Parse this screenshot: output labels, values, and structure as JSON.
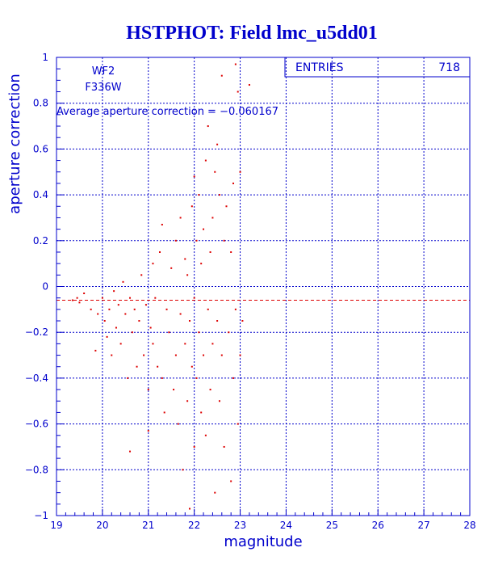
{
  "colors": {
    "text": "#0000cc",
    "grid": "#0000cc",
    "axis": "#0000cc",
    "points": "#dd0000",
    "mean_line": "#dd0000",
    "background": "#ffffff"
  },
  "chart_data": {
    "type": "scatter",
    "title": "HSTPHOT: Field lmc_u5dd01",
    "xlabel": "magnitude",
    "ylabel": "aperture correction",
    "xlim": [
      19,
      28
    ],
    "ylim": [
      -1,
      1
    ],
    "x_ticks": [
      "19",
      "20",
      "21",
      "22",
      "23",
      "24",
      "25",
      "26",
      "27",
      "28"
    ],
    "y_ticks": [
      "−1",
      "−0.8",
      "−0.6",
      "−0.4",
      "−0.2",
      "0",
      "0.2",
      "0.4",
      "0.6",
      "0.8",
      "1"
    ],
    "grid": true,
    "annotations": {
      "chip": "WF2",
      "filter": "F336W",
      "average_text": "Average aperture correction = −0.060167"
    },
    "average_line_y": -0.060167,
    "stats_box": {
      "label": "ENTRIES",
      "value": "718"
    },
    "series": [
      {
        "points": [
          [
            19.35,
            -0.06
          ],
          [
            19.45,
            -0.05
          ],
          [
            19.5,
            -0.07
          ],
          [
            19.6,
            -0.03
          ],
          [
            19.75,
            -0.1
          ],
          [
            19.85,
            -0.28
          ],
          [
            19.9,
            -0.12
          ],
          [
            20.0,
            -0.05
          ],
          [
            20.05,
            -0.15
          ],
          [
            20.1,
            -0.22
          ],
          [
            20.15,
            -0.1
          ],
          [
            20.2,
            -0.3
          ],
          [
            20.25,
            -0.02
          ],
          [
            20.3,
            -0.18
          ],
          [
            20.35,
            -0.08
          ],
          [
            20.4,
            -0.25
          ],
          [
            20.45,
            0.02
          ],
          [
            20.5,
            -0.12
          ],
          [
            20.55,
            -0.4
          ],
          [
            20.6,
            -0.05
          ],
          [
            20.6,
            -0.72
          ],
          [
            20.65,
            -0.2
          ],
          [
            20.7,
            -0.1
          ],
          [
            20.75,
            -0.35
          ],
          [
            20.8,
            -0.15
          ],
          [
            20.85,
            0.05
          ],
          [
            20.9,
            -0.3
          ],
          [
            20.95,
            -0.08
          ],
          [
            21.0,
            -0.45
          ],
          [
            21.0,
            -0.63
          ],
          [
            21.05,
            -0.18
          ],
          [
            21.1,
            -0.25
          ],
          [
            21.1,
            0.1
          ],
          [
            21.15,
            -0.05
          ],
          [
            21.2,
            -0.35
          ],
          [
            21.25,
            0.15
          ],
          [
            21.3,
            -0.4
          ],
          [
            21.3,
            0.27
          ],
          [
            21.35,
            -0.55
          ],
          [
            21.4,
            -0.1
          ],
          [
            21.45,
            -0.2
          ],
          [
            21.5,
            0.08
          ],
          [
            21.55,
            -0.45
          ],
          [
            21.6,
            0.2
          ],
          [
            21.6,
            -0.3
          ],
          [
            21.65,
            -0.6
          ],
          [
            21.7,
            0.3
          ],
          [
            21.7,
            -0.12
          ],
          [
            21.75,
            -0.8
          ],
          [
            21.8,
            0.12
          ],
          [
            21.8,
            -0.25
          ],
          [
            21.85,
            -0.5
          ],
          [
            21.85,
            0.05
          ],
          [
            21.9,
            -0.15
          ],
          [
            21.9,
            -0.97
          ],
          [
            21.95,
            0.35
          ],
          [
            21.95,
            -0.35
          ],
          [
            22.0,
            0.48
          ],
          [
            22.0,
            -0.05
          ],
          [
            22.0,
            -0.7
          ],
          [
            22.05,
            0.2
          ],
          [
            22.05,
            -0.4
          ],
          [
            22.1,
            0.4
          ],
          [
            22.1,
            -0.2
          ],
          [
            22.15,
            0.1
          ],
          [
            22.15,
            -0.55
          ],
          [
            22.2,
            0.25
          ],
          [
            22.2,
            -0.3
          ],
          [
            22.25,
            0.55
          ],
          [
            22.25,
            -0.65
          ],
          [
            22.3,
            0.7
          ],
          [
            22.3,
            -0.1
          ],
          [
            22.35,
            0.15
          ],
          [
            22.35,
            -0.45
          ],
          [
            22.4,
            0.3
          ],
          [
            22.4,
            -0.25
          ],
          [
            22.45,
            0.5
          ],
          [
            22.45,
            -0.9
          ],
          [
            22.5,
            0.62
          ],
          [
            22.5,
            -0.15
          ],
          [
            22.55,
            0.4
          ],
          [
            22.55,
            -0.5
          ],
          [
            22.6,
            0.92
          ],
          [
            22.6,
            -0.3
          ],
          [
            22.65,
            0.2
          ],
          [
            22.65,
            -0.7
          ],
          [
            22.7,
            0.35
          ],
          [
            22.75,
            -0.2
          ],
          [
            22.8,
            0.15
          ],
          [
            22.8,
            -0.85
          ],
          [
            22.85,
            0.45
          ],
          [
            22.85,
            -0.4
          ],
          [
            22.9,
            0.97
          ],
          [
            22.9,
            -0.1
          ],
          [
            22.95,
            0.85
          ],
          [
            22.95,
            -0.6
          ],
          [
            23.0,
            -0.3
          ],
          [
            23.0,
            0.5
          ],
          [
            23.05,
            -0.15
          ],
          [
            23.2,
            0.88
          ]
        ]
      }
    ]
  }
}
